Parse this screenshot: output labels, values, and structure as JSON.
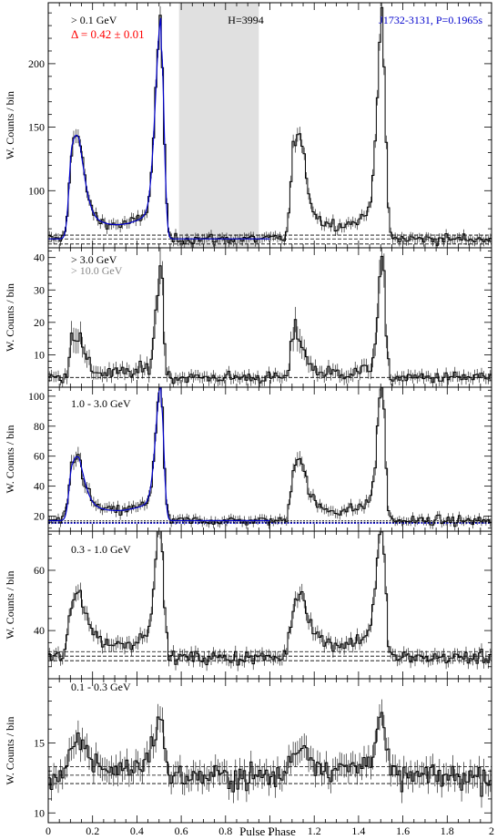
{
  "figure": {
    "xlabel": "Pulse Phase",
    "x_ticks": [
      "0",
      "0.2",
      "0.4",
      "0.6",
      "0.8",
      "1",
      "1.2",
      "1.4",
      "1.6",
      "1.8",
      "2"
    ],
    "colors": {
      "trace": "#000000",
      "model": "#0000cc",
      "text_red": "#ff0000",
      "text_blue": "#0000cc",
      "text_gray": "#888888",
      "offpulse": "#e0e0e0"
    }
  },
  "chart_data": [
    {
      "type": "line",
      "panel": "0.1",
      "ylabel": "W. Counts / bin",
      "band_label": "> 0.1 GeV",
      "delta_label": "Δ = 0.42 ± 0.01",
      "h_label": "H=3994",
      "pulsar_label": "J1732-3131, P=0.1965s",
      "ylim": [
        55,
        248
      ],
      "y_ticks": [
        100,
        150,
        200
      ],
      "baselines": [
        58,
        62,
        65
      ],
      "offpulse_range": [
        0.59,
        0.95
      ],
      "model_curve": true,
      "profile": {
        "bg": 62,
        "peak1": {
          "phase": 0.11,
          "height": 75,
          "width": 0.025
        },
        "peak2": {
          "phase": 0.51,
          "height": 150,
          "width": 0.016
        },
        "bridge": 25,
        "noise": 4
      }
    },
    {
      "type": "line",
      "panel": "3.0",
      "ylabel": "W. Counts / bin",
      "band_label": "> 3.0 GeV",
      "band_label_2": "> 10.0 GeV",
      "ylim": [
        0,
        43
      ],
      "y_ticks": [
        10,
        20,
        30,
        40
      ],
      "baselines": [
        3
      ],
      "profile": {
        "bg": 3,
        "peak1": {
          "phase": 0.11,
          "height": 14,
          "width": 0.022
        },
        "peak2": {
          "phase": 0.51,
          "height": 32,
          "width": 0.014
        },
        "bridge": 3,
        "noise": 1.8
      }
    },
    {
      "type": "line",
      "panel": "1.0",
      "ylabel": "W. Counts / bin",
      "band_label": "1.0 - 3.0 GeV",
      "ylim": [
        10,
        106
      ],
      "y_ticks": [
        20,
        40,
        60,
        80,
        100
      ],
      "baselines": [
        16,
        17
      ],
      "model_curve": true,
      "profile": {
        "bg": 17,
        "peak1": {
          "phase": 0.11,
          "height": 38,
          "width": 0.025
        },
        "peak2": {
          "phase": 0.51,
          "height": 78,
          "width": 0.015
        },
        "bridge": 15,
        "noise": 3
      }
    },
    {
      "type": "line",
      "panel": "0.3",
      "ylabel": "W. Counts / bin",
      "band_label": "0.3 - 1.0 GeV",
      "ylim": [
        24,
        73
      ],
      "y_ticks": [
        40,
        60
      ],
      "baselines": [
        30,
        31.5,
        33
      ],
      "profile": {
        "bg": 31,
        "peak1": {
          "phase": 0.11,
          "height": 17,
          "width": 0.03
        },
        "peak2": {
          "phase": 0.51,
          "height": 35,
          "width": 0.017
        },
        "bridge": 10,
        "noise": 2.2
      }
    },
    {
      "type": "line",
      "panel": "0.1-0.3",
      "ylabel": "W. Counts / bin",
      "band_label": "0.1 - 0.3 GeV",
      "ylim": [
        9.3,
        19.6
      ],
      "y_ticks": [
        10,
        15
      ],
      "baselines": [
        12.1,
        12.7,
        13.3
      ],
      "profile": {
        "bg": 12.6,
        "peak1": {
          "phase": 0.11,
          "height": 1.6,
          "width": 0.035
        },
        "peak2": {
          "phase": 0.51,
          "height": 3.3,
          "width": 0.02
        },
        "bridge": 1.2,
        "noise": 0.9
      }
    }
  ]
}
